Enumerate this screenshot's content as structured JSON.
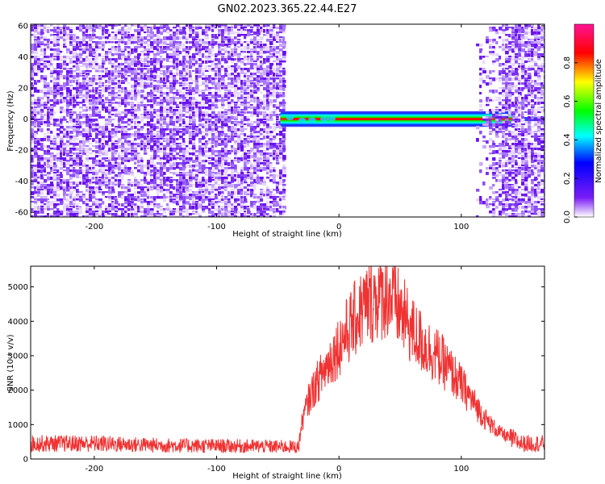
{
  "title": "GN02.2023.365.22.44.E27",
  "colors": {
    "snr_line": "#f03232",
    "spectro_bg_purple": "#7d3cf0",
    "colorbar_stops": [
      "#ffffff",
      "#7a1cf5",
      "#0000ff",
      "#00ffff",
      "#00ff00",
      "#ffff00",
      "#ff0000",
      "#ff1493"
    ]
  },
  "chart_data": [
    {
      "type": "heatmap",
      "title": "GN02.2023.365.22.44.E27",
      "xlabel": "Height of straight line (km)",
      "ylabel": "Frequency (Hz)",
      "xlim": [
        -252,
        168
      ],
      "ylim": [
        -63,
        61
      ],
      "x_ticks": [
        -200,
        -100,
        0,
        100
      ],
      "y_ticks": [
        60,
        40,
        20,
        0,
        -20,
        -40,
        -60
      ],
      "x_tick_labels": [
        "-200",
        "-100",
        "0",
        "100"
      ],
      "y_tick_labels": [
        "60",
        "40",
        "20",
        "0",
        "-20",
        "-40",
        "-60"
      ],
      "colorbar": {
        "label": "Normalized spectral amplitude",
        "range": [
          0,
          1
        ],
        "ticks": [
          0.0,
          0.2,
          0.4,
          0.6,
          0.8
        ],
        "tick_labels": [
          "0.0",
          "0.2",
          "0.4",
          "0.6",
          "0.8"
        ]
      },
      "regions": [
        {
          "name": "noise",
          "x_range": [
            -252,
            -46
          ],
          "freq_range": [
            -63,
            61
          ],
          "amplitude": 0.15
        },
        {
          "name": "signal_band",
          "x_range": [
            -48,
            142
          ],
          "freq_center": 0,
          "freq_halfwidth": 4,
          "amplitude": 0.9
        },
        {
          "name": "noise",
          "x_range": [
            112,
            168
          ],
          "freq_range": [
            -63,
            61
          ],
          "amplitude": 0.12
        }
      ]
    },
    {
      "type": "line",
      "xlabel": "Height of straight line (km)",
      "ylabel": "SNR (10 * v/v)",
      "xlim": [
        -252,
        168
      ],
      "ylim": [
        0,
        5600
      ],
      "x_ticks": [
        -200,
        -100,
        0,
        100
      ],
      "y_ticks": [
        0,
        1000,
        2000,
        3000,
        4000,
        5000
      ],
      "x_tick_labels": [
        "-200",
        "-100",
        "0",
        "100"
      ],
      "y_tick_labels": [
        "0",
        "1000",
        "2000",
        "3000",
        "4000",
        "5000"
      ],
      "x": [
        -252,
        -200,
        -150,
        -100,
        -50,
        -33,
        -30,
        -25,
        -20,
        -10,
        0,
        10,
        20,
        30,
        40,
        50,
        60,
        70,
        80,
        90,
        100,
        110,
        120,
        130,
        140,
        150,
        160,
        168
      ],
      "y": [
        450,
        450,
        400,
        380,
        360,
        350,
        1100,
        1700,
        2100,
        2700,
        3300,
        3900,
        4400,
        4700,
        4800,
        4300,
        3700,
        3300,
        3000,
        2600,
        2150,
        1650,
        1150,
        800,
        600,
        450,
        450,
        450
      ]
    }
  ]
}
